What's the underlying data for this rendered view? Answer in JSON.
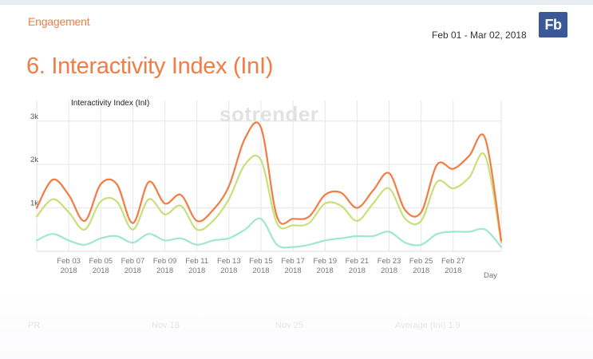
{
  "header": {
    "section_label": "Engagement",
    "date_range": "Feb 01 - Mar 02, 2018",
    "network_badge": "Fb",
    "title": "6. Interactivity Index (InI)"
  },
  "colors": {
    "accent": "#f07d45",
    "badge": "#3b5998",
    "series": [
      "#f27c44",
      "#c8df7a",
      "#9fe7cf"
    ]
  },
  "chart_data": {
    "type": "line",
    "title": "Interactivity Index (InI)",
    "watermark": "sotrender",
    "xlabel": "Day",
    "ylabel": "",
    "ylim": [
      0,
      3400
    ],
    "yticks": [
      {
        "value": 1000,
        "label": "1k"
      },
      {
        "value": 2000,
        "label": "2k"
      },
      {
        "value": 3000,
        "label": "3k"
      }
    ],
    "xticks": [
      {
        "day": 3,
        "line1": "Feb 03",
        "line2": "2018"
      },
      {
        "day": 5,
        "line1": "Feb 05",
        "line2": "2018"
      },
      {
        "day": 7,
        "line1": "Feb 07",
        "line2": "2018"
      },
      {
        "day": 9,
        "line1": "Feb 09",
        "line2": "2018"
      },
      {
        "day": 11,
        "line1": "Feb 11",
        "line2": "2018"
      },
      {
        "day": 13,
        "line1": "Feb 13",
        "line2": "2018"
      },
      {
        "day": 15,
        "line1": "Feb 15",
        "line2": "2018"
      },
      {
        "day": 17,
        "line1": "Feb 17",
        "line2": "2018"
      },
      {
        "day": 19,
        "line1": "Feb 19",
        "line2": "2018"
      },
      {
        "day": 21,
        "line1": "Feb 21",
        "line2": "2018"
      },
      {
        "day": 23,
        "line1": "Feb 23",
        "line2": "2018"
      },
      {
        "day": 25,
        "line1": "Feb 25",
        "line2": "2018"
      },
      {
        "day": 27,
        "line1": "Feb 27",
        "line2": "2018"
      }
    ],
    "x": [
      1,
      2,
      3,
      4,
      5,
      6,
      7,
      8,
      9,
      10,
      11,
      12,
      13,
      14,
      15,
      16,
      17,
      18,
      19,
      20,
      21,
      22,
      23,
      24,
      25,
      26,
      27,
      28,
      29,
      30
    ],
    "series": [
      {
        "values": [
          1000,
          1650,
          1300,
          700,
          1550,
          1550,
          650,
          1600,
          1100,
          1300,
          700,
          950,
          1500,
          2600,
          2850,
          800,
          750,
          800,
          1300,
          1350,
          1000,
          1400,
          1800,
          950,
          900,
          2000,
          1900,
          2200,
          2600,
          250
        ]
      },
      {
        "values": [
          800,
          1200,
          900,
          500,
          1150,
          1150,
          500,
          1200,
          850,
          1050,
          500,
          700,
          1200,
          2000,
          2100,
          650,
          600,
          650,
          1100,
          1050,
          700,
          1100,
          1450,
          750,
          700,
          1600,
          1450,
          1700,
          2200,
          200
        ]
      },
      {
        "values": [
          250,
          400,
          250,
          150,
          300,
          350,
          200,
          400,
          250,
          300,
          150,
          250,
          300,
          500,
          750,
          150,
          100,
          150,
          250,
          300,
          350,
          350,
          450,
          200,
          150,
          400,
          450,
          450,
          500,
          100
        ]
      }
    ],
    "grid": true,
    "legend": "none"
  },
  "footer_faded": [
    "PR",
    "Nov 18",
    "Nov 25",
    "Average (InI) 1.9"
  ]
}
